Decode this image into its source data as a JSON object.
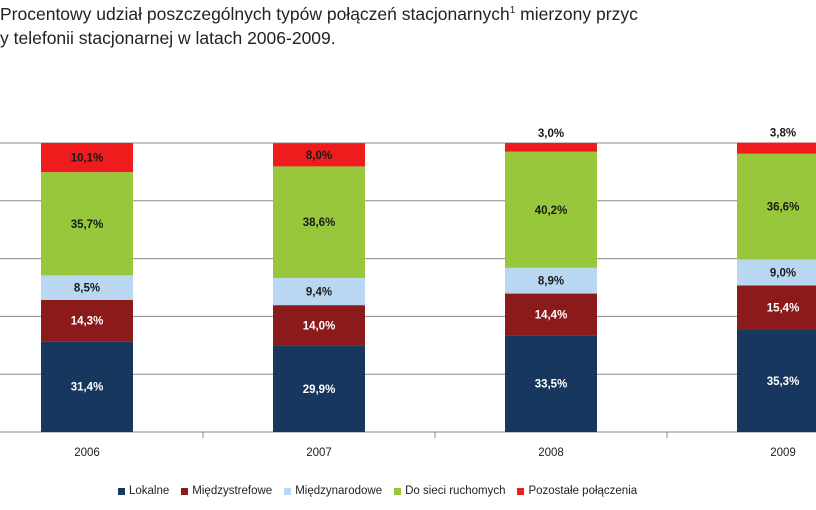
{
  "chart_data": {
    "type": "bar",
    "stacked": true,
    "title_line1": "Procentowy udział poszczególnych typów połączeń stacjonarnych",
    "title_sup": "1",
    "title_line1_end": " mierzony przyc",
    "title_line2": "y telefonii stacjonarnej w latach 2006-2009.",
    "categories": [
      "2006",
      "2007",
      "2008",
      "2009"
    ],
    "series": [
      {
        "name": "Lokalne",
        "color": "#17375e",
        "values": [
          31.4,
          29.9,
          33.5,
          35.3
        ],
        "labels": [
          "31,4%",
          "29,9%",
          "33,5%",
          "35,3%"
        ]
      },
      {
        "name": "Międzystrefowe",
        "color": "#8b1a1a",
        "values": [
          14.3,
          14.0,
          14.4,
          15.4
        ],
        "labels": [
          "14,3%",
          "14,0%",
          "14,4%",
          "15,4%"
        ]
      },
      {
        "name": "Międzynarodowe",
        "color": "#b9d7f1",
        "values": [
          8.5,
          9.4,
          8.9,
          9.0
        ],
        "labels": [
          "8,5%",
          "9,4%",
          "8,9%",
          "9,0%"
        ]
      },
      {
        "name": "Do sieci ruchomych",
        "color": "#99c73c",
        "values": [
          35.7,
          38.6,
          40.2,
          36.6
        ],
        "labels": [
          "35,7%",
          "38,6%",
          "40,2%",
          "36,6%"
        ]
      },
      {
        "name": "Pozostałe połączenia",
        "color": "#ee1c1c",
        "values": [
          10.1,
          8.0,
          3.0,
          3.8
        ],
        "labels": [
          "10,1%",
          "8,0%",
          "3,0%",
          "3,8%"
        ]
      }
    ],
    "ylim": [
      0,
      100
    ],
    "grid": true,
    "legend_position": "bottom"
  }
}
